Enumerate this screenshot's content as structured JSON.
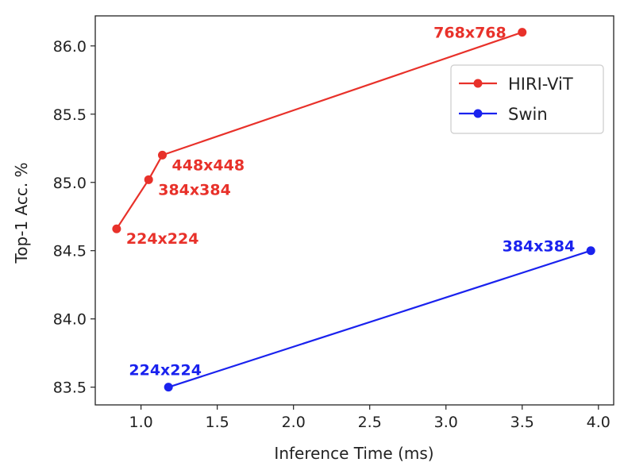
{
  "chart_data": {
    "type": "line",
    "title": "",
    "xlabel": "Inference Time (ms)",
    "ylabel": "Top-1 Acc. %",
    "xlim": [
      0.7,
      4.1
    ],
    "ylim": [
      83.37,
      86.22
    ],
    "xticks": [
      1.0,
      1.5,
      2.0,
      2.5,
      3.0,
      3.5,
      4.0
    ],
    "xtick_labels": [
      "1.0",
      "1.5",
      "2.0",
      "2.5",
      "3.0",
      "3.5",
      "4.0"
    ],
    "yticks": [
      83.5,
      84.0,
      84.5,
      85.0,
      85.5,
      86.0
    ],
    "ytick_labels": [
      "83.5",
      "84.0",
      "84.5",
      "85.0",
      "85.5",
      "86.0"
    ],
    "grid": false,
    "legend_position": "upper-right",
    "series": [
      {
        "name": "HIRI-ViT",
        "color": "#e8312a",
        "x": [
          0.84,
          1.05,
          1.14,
          3.5
        ],
        "y": [
          84.66,
          85.02,
          85.2,
          86.1
        ],
        "point_labels": [
          "224x224",
          "384x384",
          "448x448",
          "768x768"
        ],
        "label_placement": [
          "right",
          "right",
          "right",
          "left"
        ]
      },
      {
        "name": "Swin",
        "color": "#1a22ee",
        "x": [
          1.18,
          3.95
        ],
        "y": [
          83.5,
          84.5
        ],
        "point_labels": [
          "224x224",
          "384x384"
        ],
        "label_placement": [
          "above",
          "above-left"
        ]
      }
    ]
  }
}
